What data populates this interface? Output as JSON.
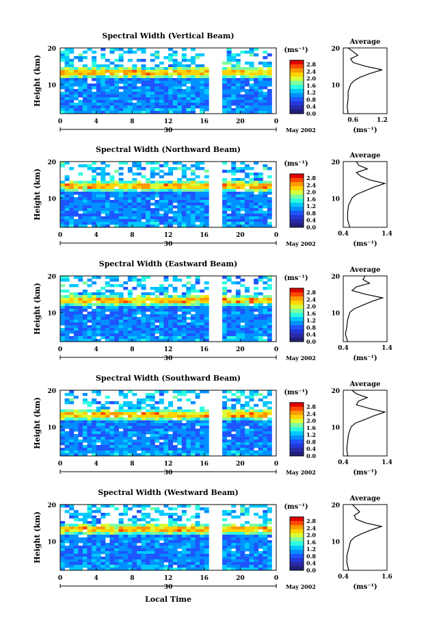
{
  "footer": {
    "xlabel": "Local Time"
  },
  "colorbar": {
    "unit_label": "(ms⁻¹)",
    "ticks": [
      "2.8",
      "2.4",
      "2.0",
      "1.6",
      "1.2",
      "0.8",
      "0.4",
      "0.0"
    ],
    "colors": [
      "#e00000",
      "#ff4a00",
      "#ff9a00",
      "#ffd400",
      "#d8ff3a",
      "#7dffa0",
      "#2bffe0",
      "#00c8ff",
      "#0090ff",
      "#1f55ff",
      "#2438d8",
      "#2a2aa8",
      "#20207a"
    ]
  },
  "colors": {
    "low": "#2a3fe0",
    "mid": "#1fb5ff",
    "high": "#ff3a00",
    "profile_line": "#000000"
  },
  "chart_data": [
    {
      "type": "heatmap",
      "title": "Spectral Width (Vertical Beam)",
      "ylabel": "Height (km)",
      "xticks": [
        "0",
        "4",
        "8",
        "12",
        "16",
        "20",
        "0"
      ],
      "yticks": [
        "20",
        "10"
      ],
      "date_tick": "30",
      "month_label": "May 2002",
      "xlim": [
        0,
        24
      ],
      "ylim": [
        2,
        20
      ],
      "data_gap": [
        16.8,
        17.8
      ],
      "profile": {
        "title": "Average",
        "xlabel": "(ms⁻¹)",
        "xticks": [
          "0.6",
          "1.2"
        ],
        "yticks": [
          "20",
          "10"
        ],
        "xlim": [
          0.4,
          1.3
        ],
        "heights": [
          2,
          4,
          6,
          8,
          10,
          11,
          12,
          13,
          14,
          15,
          16,
          17,
          18,
          19,
          20
        ],
        "values": [
          0.5,
          0.48,
          0.5,
          0.5,
          0.55,
          0.62,
          0.75,
          0.95,
          1.2,
          0.85,
          0.6,
          0.55,
          0.7,
          0.6,
          0.5
        ]
      }
    },
    {
      "type": "heatmap",
      "title": "Spectral Width (Northward Beam)",
      "ylabel": "Height (km)",
      "xticks": [
        "0",
        "4",
        "8",
        "12",
        "16",
        "20",
        "0"
      ],
      "yticks": [
        "20",
        "10"
      ],
      "date_tick": "30",
      "month_label": "May 2002",
      "xlim": [
        0,
        24
      ],
      "ylim": [
        2,
        20
      ],
      "data_gap": [
        16.8,
        17.8
      ],
      "profile": {
        "title": "Average",
        "xlabel": "(ms⁻¹)",
        "xticks": [
          "0.4",
          "1.4"
        ],
        "yticks": [
          "20",
          "10"
        ],
        "xlim": [
          0.4,
          1.4
        ],
        "heights": [
          2,
          4,
          6,
          8,
          10,
          11,
          12,
          13,
          14,
          15,
          16,
          17,
          18,
          19,
          20
        ],
        "values": [
          0.55,
          0.5,
          0.5,
          0.52,
          0.6,
          0.7,
          0.9,
          1.1,
          1.35,
          1.0,
          0.8,
          0.7,
          0.95,
          0.75,
          0.7
        ]
      }
    },
    {
      "type": "heatmap",
      "title": "Spectral Width (Eastward Beam)",
      "ylabel": "Height (km)",
      "xticks": [
        "0",
        "4",
        "8",
        "12",
        "16",
        "20",
        "0"
      ],
      "yticks": [
        "20",
        "10"
      ],
      "date_tick": "30",
      "month_label": "May 2002",
      "xlim": [
        0,
        24
      ],
      "ylim": [
        2,
        20
      ],
      "data_gap": [
        16.8,
        17.8
      ],
      "profile": {
        "title": "Average",
        "xlabel": "(ms⁻¹)",
        "xticks": [
          "0.4",
          "1.4"
        ],
        "yticks": [
          "20",
          "10"
        ],
        "xlim": [
          0.4,
          1.4
        ],
        "heights": [
          2,
          4,
          6,
          8,
          10,
          11,
          12,
          13,
          14,
          15,
          16,
          17,
          18,
          19,
          20
        ],
        "values": [
          0.5,
          0.45,
          0.48,
          0.5,
          0.55,
          0.65,
          0.85,
          1.05,
          1.3,
          0.9,
          0.6,
          0.7,
          1.0,
          0.85,
          0.9
        ]
      }
    },
    {
      "type": "heatmap",
      "title": "Spectral Width (Southward Beam)",
      "ylabel": "Height (km)",
      "xticks": [
        "0",
        "4",
        "8",
        "12",
        "16",
        "20",
        "0"
      ],
      "yticks": [
        "20",
        "10"
      ],
      "date_tick": "30",
      "month_label": "May 2002",
      "xlim": [
        0,
        24
      ],
      "ylim": [
        2,
        20
      ],
      "data_gap": [
        16.8,
        17.8
      ],
      "profile": {
        "title": "Average",
        "xlabel": "(ms⁻¹)",
        "xticks": [
          "0.4",
          "1.4"
        ],
        "yticks": [
          "20",
          "10"
        ],
        "xlim": [
          0.4,
          1.4
        ],
        "heights": [
          2,
          4,
          6,
          8,
          10,
          11,
          12,
          13,
          14,
          15,
          16,
          17,
          18,
          19,
          20
        ],
        "values": [
          0.5,
          0.48,
          0.5,
          0.52,
          0.58,
          0.68,
          0.9,
          1.1,
          1.35,
          1.0,
          0.7,
          0.75,
          0.95,
          0.7,
          0.6
        ]
      }
    },
    {
      "type": "heatmap",
      "title": "Spectral Width (Westward Beam)",
      "ylabel": "Height (km)",
      "xticks": [
        "0",
        "4",
        "8",
        "12",
        "16",
        "20",
        "0"
      ],
      "yticks": [
        "20",
        "10"
      ],
      "date_tick": "30",
      "month_label": "May 2002",
      "xlim": [
        0,
        24
      ],
      "ylim": [
        2,
        20
      ],
      "data_gap": [
        16.8,
        17.8
      ],
      "profile": {
        "title": "Average",
        "xlabel": "(ms⁻¹)",
        "xticks": [
          "0.4",
          "1.6"
        ],
        "yticks": [
          "20",
          "10"
        ],
        "xlim": [
          0.4,
          1.6
        ],
        "heights": [
          2,
          4,
          6,
          8,
          10,
          11,
          12,
          13,
          14,
          15,
          16,
          17,
          18,
          19,
          20
        ],
        "values": [
          0.55,
          0.5,
          0.5,
          0.55,
          0.6,
          0.7,
          0.9,
          1.15,
          1.45,
          1.0,
          0.75,
          0.7,
          0.85,
          0.75,
          0.65
        ]
      }
    }
  ]
}
